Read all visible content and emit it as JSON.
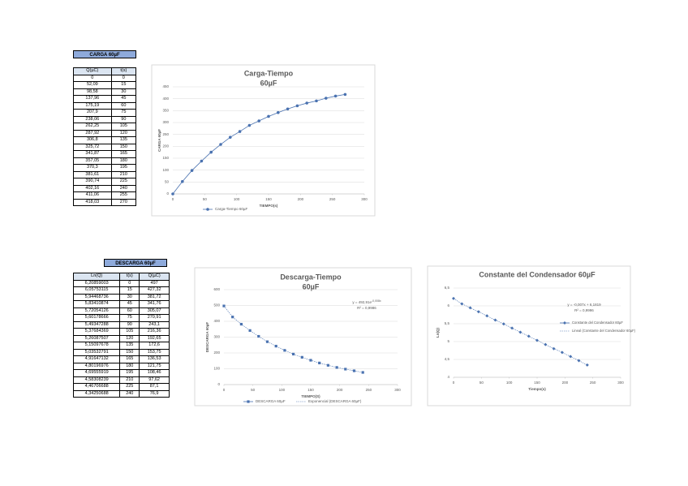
{
  "carga": {
    "title": "CARGA 60µF",
    "columns": [
      "Q(µC)",
      "t(s)"
    ],
    "rows": [
      [
        "0",
        "0"
      ],
      [
        "52,09",
        "15"
      ],
      [
        "98,58",
        "30"
      ],
      [
        "137,96",
        "45"
      ],
      [
        "175,19",
        "60"
      ],
      [
        "207,9",
        "75"
      ],
      [
        "238,06",
        "90"
      ],
      [
        "262,25",
        "105"
      ],
      [
        "287,92",
        "120"
      ],
      [
        "306,8",
        "135"
      ],
      [
        "325,72",
        "150"
      ],
      [
        "341,87",
        "165"
      ],
      [
        "357,05",
        "180"
      ],
      [
        "370,3",
        "195"
      ],
      [
        "381,61",
        "210"
      ],
      [
        "390,74",
        "225"
      ],
      [
        "402,16",
        "240"
      ],
      [
        "411,06",
        "255"
      ],
      [
        "418,03",
        "270"
      ]
    ]
  },
  "descarga": {
    "title": "DESCARGA 60µF",
    "columns": [
      "Ln(Q)",
      "t(s)",
      "Q(µC)"
    ],
    "rows": [
      [
        "6,20859003",
        "0",
        "497"
      ],
      [
        "6,05753115",
        "15",
        "427,32"
      ],
      [
        "5,94468736",
        "30",
        "381,72"
      ],
      [
        "5,83410874",
        "45",
        "341,76"
      ],
      [
        "5,72054126",
        "60",
        "305,07"
      ],
      [
        "5,60178666",
        "75",
        "270,91"
      ],
      [
        "5,49347288",
        "90",
        "243,1"
      ],
      [
        "5,37684369",
        "105",
        "216,36"
      ],
      [
        "5,26087507",
        "120",
        "192,65"
      ],
      [
        "5,15097678",
        "135",
        "172,6"
      ],
      [
        "5,03532791",
        "150",
        "153,75"
      ],
      [
        "4,91647132",
        "165",
        "136,53"
      ],
      [
        "4,80196976",
        "180",
        "121,75"
      ],
      [
        "4,69555919",
        "195",
        "108,46"
      ],
      [
        "4,58308239",
        "210",
        "97,62"
      ],
      [
        "4,46706688",
        "225",
        "87,1"
      ],
      [
        "4,34250688",
        "240",
        "76,9"
      ]
    ]
  },
  "chart_data": [
    {
      "type": "line",
      "title": "Carga-Tiempo",
      "subtitle": "60µF",
      "x_label": "TIEMPO(s)",
      "y_label": "CARGA 60µF",
      "x": [
        0,
        15,
        30,
        45,
        60,
        75,
        90,
        105,
        120,
        135,
        150,
        165,
        180,
        195,
        210,
        225,
        240,
        255,
        270
      ],
      "series": [
        {
          "name": "Carga-Tiempo 60µF",
          "color": "#4a72b0",
          "marker": "circle",
          "values": [
            0,
            52.09,
            98.58,
            137.96,
            175.19,
            207.9,
            238.06,
            262.25,
            287.92,
            306.8,
            325.72,
            341.87,
            357.05,
            370.3,
            381.61,
            390.74,
            402.16,
            411.06,
            418.03
          ]
        }
      ],
      "xlim": [
        0,
        300
      ],
      "xticks": [
        0,
        50,
        100,
        150,
        200,
        250,
        300
      ],
      "ylim": [
        0,
        450
      ],
      "yticks": [
        0,
        50,
        100,
        150,
        200,
        250,
        300,
        350,
        400,
        450
      ],
      "grid": true
    },
    {
      "type": "line",
      "title": "Descarga-Tiempo",
      "subtitle": "60µF",
      "x_label": "TIEMPO(S)",
      "y_label": "DESCARGA 60µF",
      "x": [
        0,
        15,
        30,
        45,
        60,
        75,
        90,
        105,
        120,
        135,
        150,
        165,
        180,
        195,
        210,
        225,
        240
      ],
      "series": [
        {
          "name": "DESCARGA 60µF",
          "color": "#4a72b0",
          "marker": "square",
          "values": [
            497,
            427.32,
            381.72,
            341.76,
            305.07,
            270.91,
            243.1,
            216.36,
            192.65,
            172.6,
            153.75,
            136.53,
            121.75,
            108.46,
            97.62,
            87.1,
            76.9
          ]
        }
      ],
      "trend_name": "Exponencial (DESCARGA 60µF)",
      "annotation": {
        "equation": "y = 492,91e",
        "exponent": "-0,008x",
        "r2": "R² = 0,9986"
      },
      "xlim": [
        0,
        300
      ],
      "xticks": [
        0,
        50,
        100,
        150,
        200,
        250,
        300
      ],
      "ylim": [
        0,
        600
      ],
      "yticks": [
        0,
        100,
        200,
        300,
        400,
        500,
        600
      ],
      "grid": true
    },
    {
      "type": "line",
      "title": "Constante del Condensador 60µF",
      "x_label": "Tiempo(s)",
      "y_label": "Ln(Q)",
      "x": [
        0,
        15,
        30,
        45,
        60,
        75,
        90,
        105,
        120,
        135,
        150,
        165,
        180,
        195,
        210,
        225,
        240
      ],
      "series": [
        {
          "name": "Constante del Condensador 60µF",
          "color": "#4a72b0",
          "marker": "diamond",
          "values": [
            6.20859003,
            6.05753115,
            5.94468736,
            5.83410874,
            5.72054126,
            5.60178666,
            5.49347288,
            5.37684369,
            5.26087507,
            5.15097678,
            5.03532791,
            4.91647132,
            4.80196976,
            4.69555919,
            4.58308239,
            4.46706688,
            4.34250688
          ]
        }
      ],
      "trend_name": "Lineal (Constante del Condensador 60µF)",
      "annotation": {
        "equation": "y = -0,007x + 6,1819",
        "r2": "R² = 0,9996"
      },
      "xlim": [
        0,
        300
      ],
      "xticks": [
        0,
        50,
        100,
        150,
        200,
        250,
        300
      ],
      "ylim": [
        4,
        6.5
      ],
      "yticks": [
        4,
        {
          "value": 4.5,
          "label": "4,5"
        },
        5,
        {
          "value": 5.5,
          "label": "5,5"
        },
        6,
        {
          "value": 6.5,
          "label": "6,5"
        }
      ],
      "grid": true
    }
  ]
}
